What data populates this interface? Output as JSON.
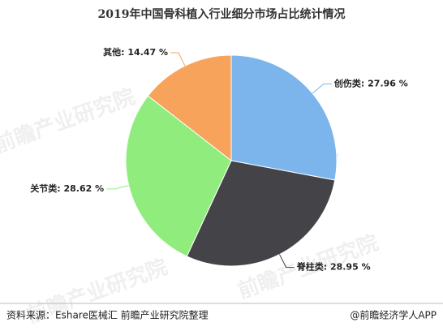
{
  "chart_data": {
    "type": "pie",
    "title": "2019年中国骨科植入行业细分市场占比统计情况",
    "categories": [
      "创伤类",
      "脊柱类",
      "关节类",
      "其他"
    ],
    "values": [
      27.96,
      28.95,
      28.62,
      14.47
    ],
    "value_labels": [
      "创伤类: 27.96 %",
      "脊柱类: 28.95 %",
      "关节类: 28.62 %",
      "其他: 14.47 %"
    ],
    "colors": [
      "#7cb5ec",
      "#434348",
      "#90ed7d",
      "#f7a35c"
    ],
    "watermark": "前瞻产业研究院",
    "source": "资料来源：Eshare医械汇 前瞻产业研究院整理",
    "credit": "@前瞻经济学人APP"
  }
}
